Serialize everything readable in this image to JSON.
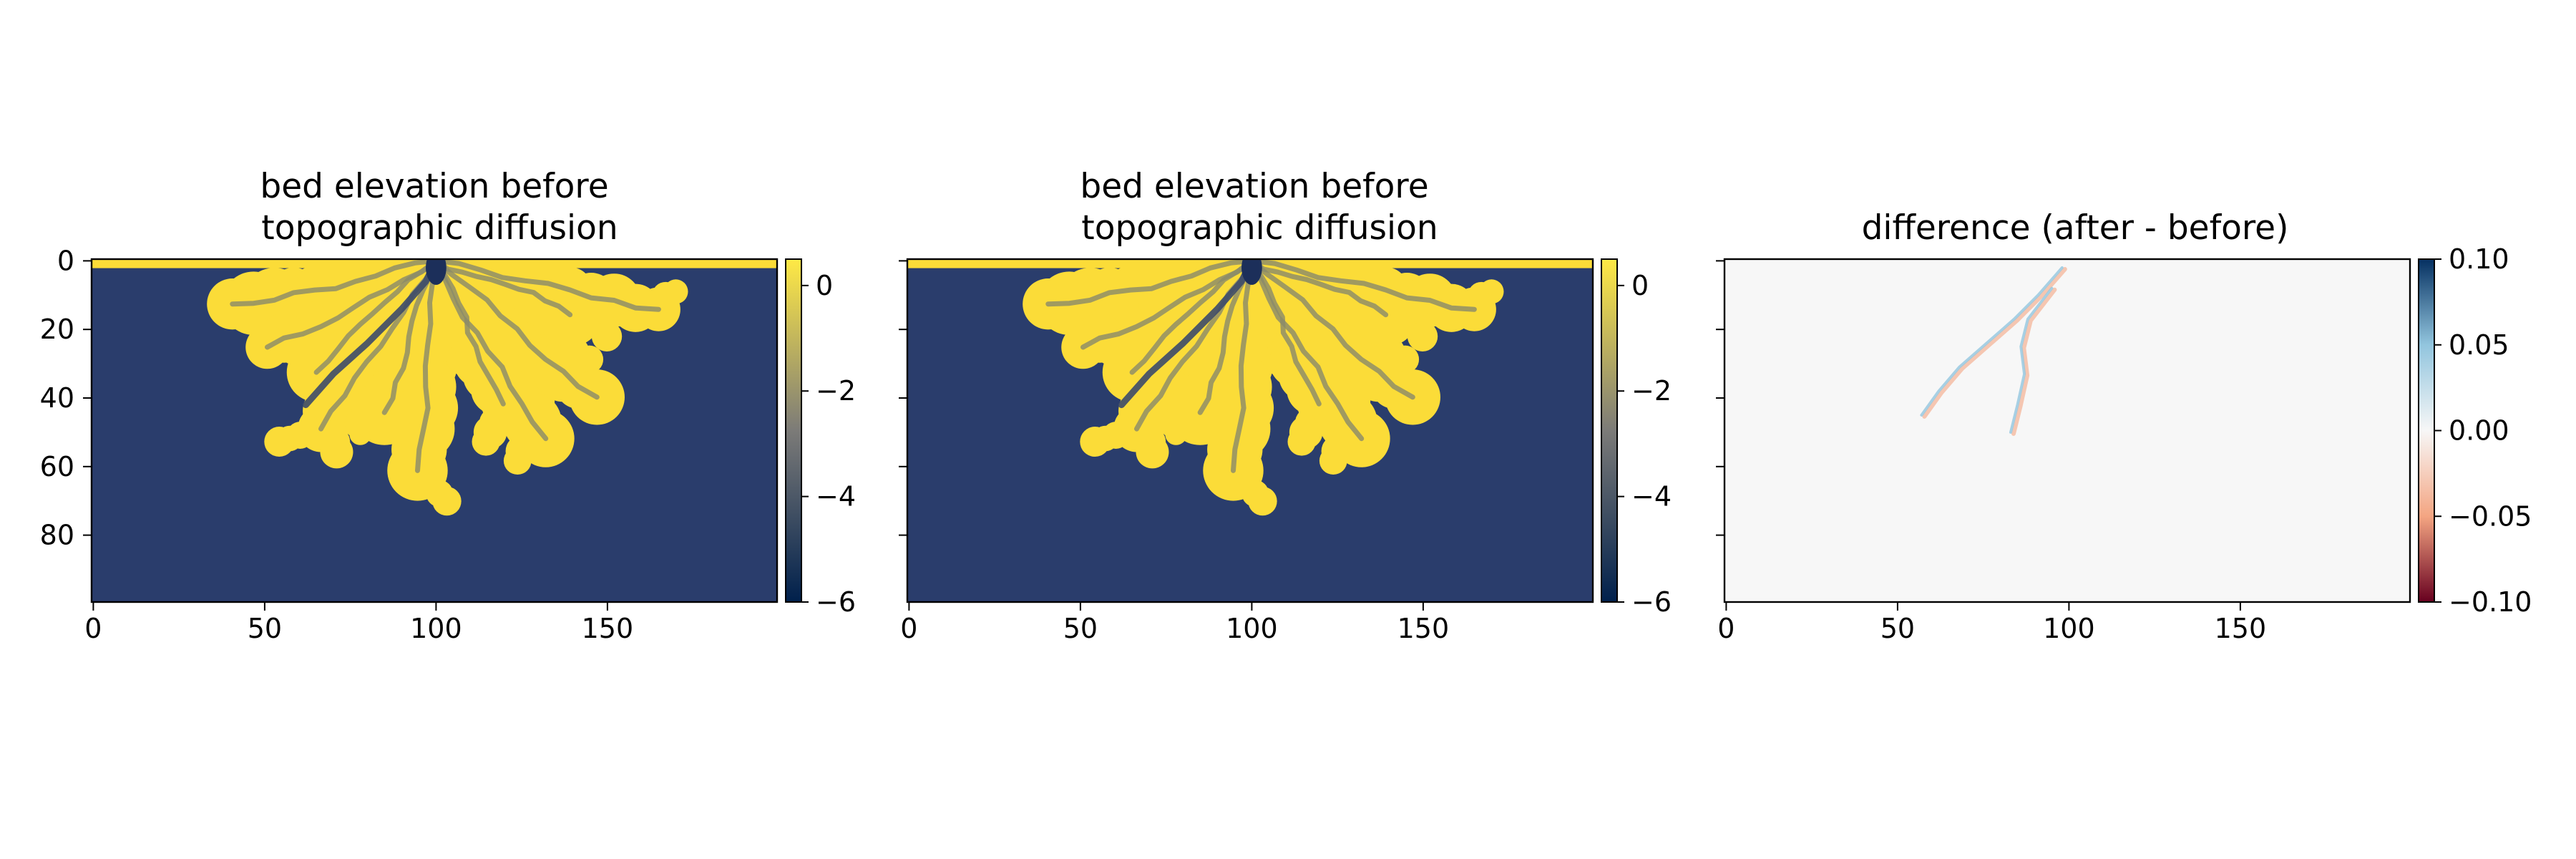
{
  "chart_data": [
    {
      "type": "heatmap",
      "title_lines": [
        "bed elevation before",
        " topographic diffusion"
      ],
      "x_ticks": [
        0,
        50,
        100,
        150
      ],
      "y_ticks": [
        0,
        20,
        40,
        60,
        80
      ],
      "xlim": [
        -0.5,
        199.5
      ],
      "ylim": [
        99.5,
        -0.5
      ],
      "colormap": [
        "#00204c",
        "#7c7b78",
        "#ffe945"
      ],
      "ocean_color": "#2a3d6c",
      "land_color": "#fbdc38",
      "channel_color": "#8a8a6a",
      "colorbar": {
        "range": [
          -6,
          0.5
        ],
        "ticks": [
          0,
          -2,
          -4,
          -6
        ],
        "tick_labels": [
          "0",
          "−2",
          "−4",
          "−6"
        ]
      },
      "delta": {
        "apex": [
          100,
          0
        ],
        "top_strip_depth": 2,
        "extent_x": [
          33,
          168
        ],
        "max_depth": 61
      }
    },
    {
      "type": "heatmap",
      "title_lines": [
        "bed elevation before",
        " topographic diffusion"
      ],
      "x_ticks": [
        0,
        50,
        100,
        150
      ],
      "y_ticks": [
        0,
        20,
        40,
        60,
        80
      ],
      "xlim": [
        -0.5,
        199.5
      ],
      "ylim": [
        99.5,
        -0.5
      ],
      "colormap": [
        "#00204c",
        "#7c7b78",
        "#ffe945"
      ],
      "ocean_color": "#2a3d6c",
      "land_color": "#fbdc38",
      "channel_color": "#8a8a6a",
      "colorbar": {
        "range": [
          -6,
          0.5
        ],
        "ticks": [
          0,
          -2,
          -4,
          -6
        ],
        "tick_labels": [
          "0",
          "−2",
          "−4",
          "−6"
        ]
      },
      "delta": {
        "apex": [
          100,
          0
        ],
        "top_strip_depth": 2,
        "extent_x": [
          33,
          168
        ],
        "max_depth": 61
      }
    },
    {
      "type": "heatmap",
      "title_lines": [
        "difference (after - before)"
      ],
      "x_ticks": [
        0,
        50,
        100,
        150
      ],
      "y_ticks": [
        0,
        20,
        40,
        60,
        80
      ],
      "xlim": [
        -0.5,
        199.5
      ],
      "ylim": [
        99.5,
        -0.5
      ],
      "colormap": [
        "#67001f",
        "#f4a582",
        "#f7f7f7",
        "#92c5de",
        "#053061"
      ],
      "background_color": "#f7f7f7",
      "colorbar": {
        "range": [
          -0.1,
          0.1
        ],
        "ticks": [
          0.1,
          0.05,
          0.0,
          -0.05,
          -0.1
        ],
        "tick_labels": [
          "0.10",
          "0.05",
          "0.00",
          "−0.05",
          "−0.10"
        ]
      },
      "difference_channels": [
        {
          "points": [
            [
              98,
              2
            ],
            [
              91,
              10
            ],
            [
              84,
              17
            ],
            [
              76,
              24
            ],
            [
              68,
              31
            ],
            [
              62,
              38
            ],
            [
              57,
              45
            ]
          ],
          "values": [
            0.04,
            -0.03
          ]
        },
        {
          "points": [
            [
              95,
              8
            ],
            [
              88,
              17
            ],
            [
              86,
              25
            ],
            [
              87,
              33
            ],
            [
              85,
              42
            ],
            [
              83,
              50
            ]
          ],
          "values": [
            0.06,
            -0.04
          ]
        }
      ]
    }
  ]
}
